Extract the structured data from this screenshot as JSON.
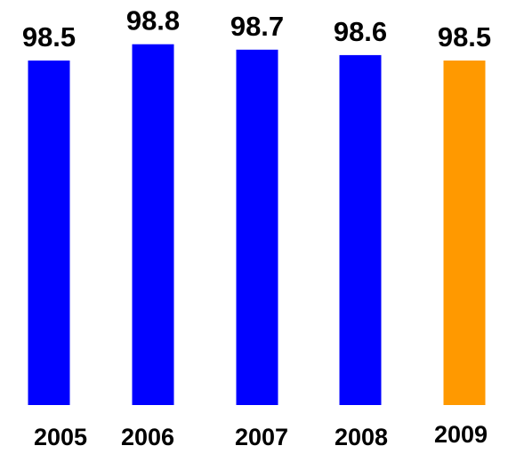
{
  "chart_data": {
    "type": "bar",
    "categories": [
      "2005",
      "2006",
      "2007",
      "2008",
      "2009"
    ],
    "values": [
      98.5,
      98.8,
      98.7,
      98.6,
      98.5
    ],
    "data_labels": [
      "98.5",
      "98.8",
      "98.7",
      "98.6",
      "98.5"
    ],
    "colors": [
      "#0000ff",
      "#0000ff",
      "#0000ff",
      "#0000ff",
      "#ff9900"
    ],
    "title": "",
    "xlabel": "",
    "ylabel": "",
    "grid": false,
    "legend": "none"
  }
}
